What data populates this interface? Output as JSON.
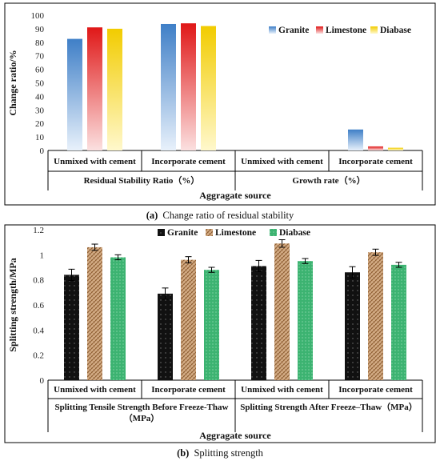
{
  "chart_data": [
    {
      "type": "bar",
      "caption_letter": "(a)",
      "caption_text": "Change ratio of residual stability",
      "ylabel": "Change ratio/%",
      "xlabel": "Aggragate source",
      "ylim": [
        0,
        100
      ],
      "yticks": [
        "0",
        "10",
        "20",
        "30",
        "40",
        "50",
        "60",
        "70",
        "80",
        "90",
        "100"
      ],
      "categories": [
        "Unmixed with cement",
        "Incorporate cement",
        "Unmixed with cement",
        "Incorporate cement"
      ],
      "groups": [
        "Residual Stability Ratio（%）",
        "Growth rate（%）"
      ],
      "legend_position": "top-right",
      "series": [
        {
          "name": "Granite",
          "color": "#5b9bd5",
          "values": [
            82.5,
            93.5,
            0,
            15.5
          ]
        },
        {
          "name": "Limestone",
          "color": "#e02020",
          "values": [
            91.0,
            94.0,
            0,
            3.0
          ]
        },
        {
          "name": "Diabase",
          "color": "#f5d000",
          "values": [
            90.0,
            92.0,
            0,
            2.0
          ]
        }
      ]
    },
    {
      "type": "bar",
      "caption_letter": "(b)",
      "caption_text": "Splitting strength",
      "ylabel": "Splitting strength/MPa",
      "xlabel": "Aggragate source",
      "ylim": [
        0,
        1.2
      ],
      "yticks": [
        "0",
        "0.2",
        "0.4",
        "0.6",
        "0.8",
        "1",
        "1.2"
      ],
      "categories": [
        "Unmixed with cement",
        "Incorporate cement",
        "Unmixed with cement",
        "Incorporate cement"
      ],
      "groups": [
        "Splitting Tensile Strength  Before Freeze-Thaw（MPa）",
        "Splitting Strength After Freeze–Thaw（MPa）"
      ],
      "group_lines": [
        [
          "Splitting Tensile Strength  Before Freeze-Thaw",
          "（MPa）"
        ],
        [
          "Splitting Strength After Freeze–Thaw（MPa）"
        ]
      ],
      "legend_position": "top-center",
      "series": [
        {
          "name": "Granite",
          "color": "#111111",
          "values": [
            0.84,
            0.69,
            0.91,
            0.86
          ],
          "errors": [
            0.045,
            0.045,
            0.045,
            0.045
          ]
        },
        {
          "name": "Limestone",
          "color": "#c89a6a",
          "values": [
            1.06,
            0.96,
            1.09,
            1.02
          ],
          "errors": [
            0.025,
            0.025,
            0.03,
            0.025
          ]
        },
        {
          "name": "Diabase",
          "color": "#3cb371",
          "values": [
            0.98,
            0.88,
            0.95,
            0.92
          ],
          "errors": [
            0.02,
            0.02,
            0.02,
            0.02
          ]
        }
      ]
    }
  ]
}
